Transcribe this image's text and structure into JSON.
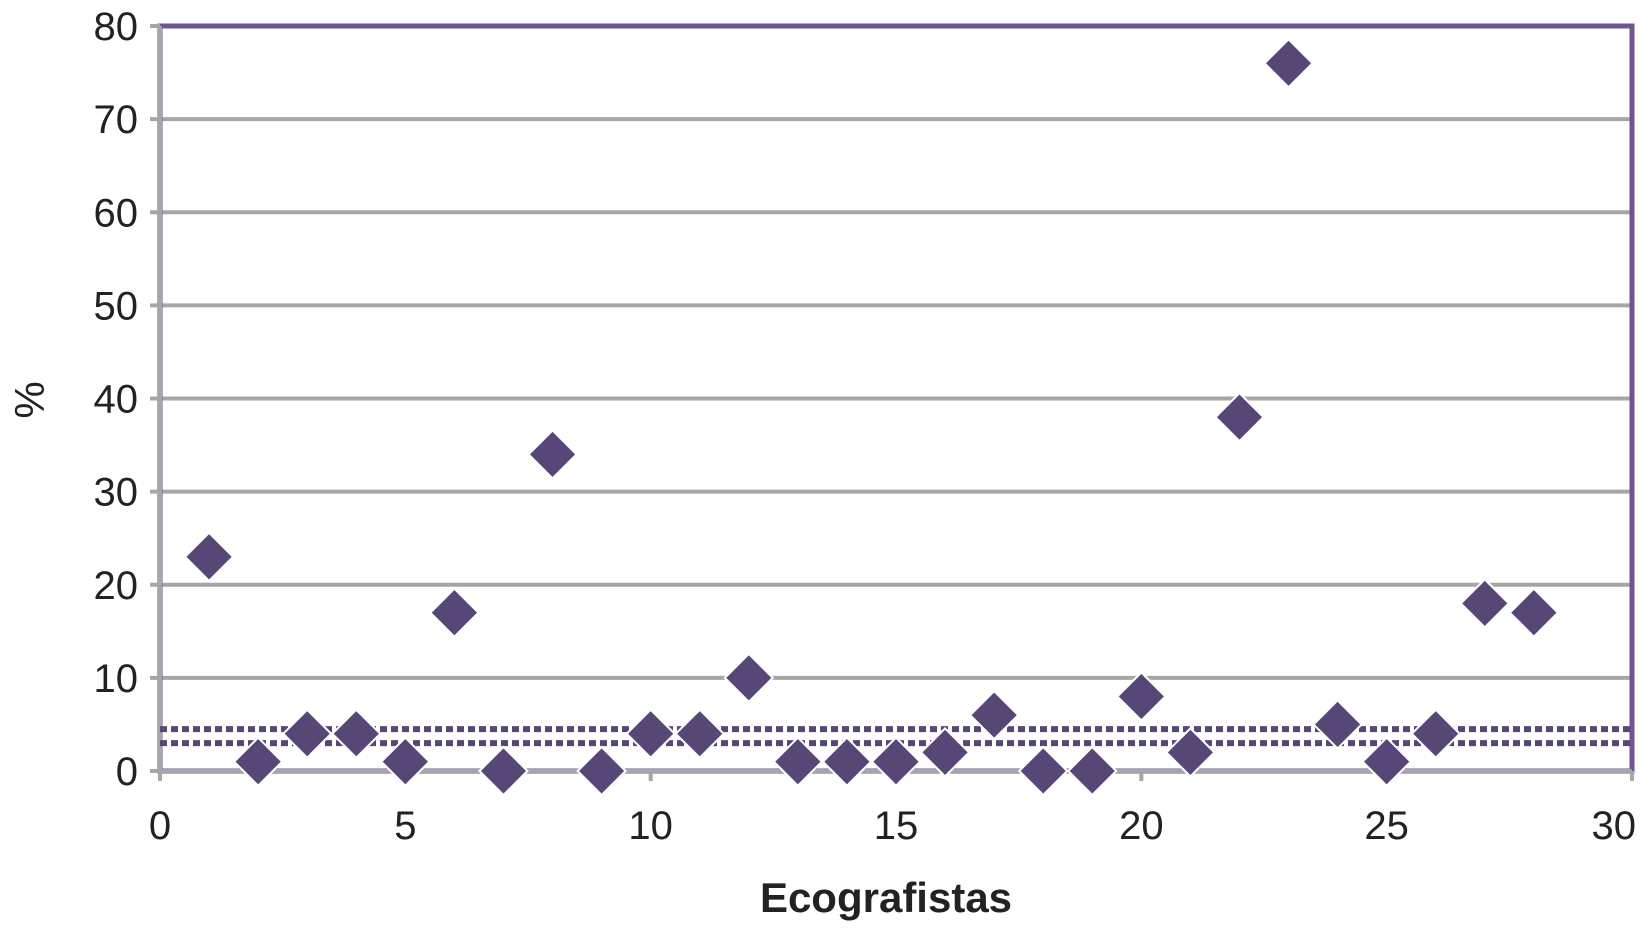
{
  "chart_data": {
    "type": "scatter",
    "title": "",
    "xlabel": "Ecografistas",
    "ylabel": "%",
    "xlim": [
      0,
      30
    ],
    "ylim": [
      0,
      80
    ],
    "xticks": [
      "0",
      "5",
      "10",
      "15",
      "20",
      "25",
      "30"
    ],
    "yticks": [
      "0",
      "10",
      "20",
      "30",
      "40",
      "50",
      "60",
      "70",
      "80"
    ],
    "grid": true,
    "legend": "none",
    "marker": "diamond",
    "colors": {
      "marker": "#574776",
      "frame": "#6f5490",
      "grid": "#a6a6a6",
      "reference_line": "#574776"
    },
    "reference_lines": [
      3,
      4.5
    ],
    "points": [
      {
        "x": 1,
        "y": 23
      },
      {
        "x": 2,
        "y": 1
      },
      {
        "x": 3,
        "y": 4
      },
      {
        "x": 4,
        "y": 4
      },
      {
        "x": 5,
        "y": 1
      },
      {
        "x": 6,
        "y": 17
      },
      {
        "x": 7,
        "y": 0
      },
      {
        "x": 8,
        "y": 34
      },
      {
        "x": 9,
        "y": 0
      },
      {
        "x": 10,
        "y": 4
      },
      {
        "x": 11,
        "y": 4
      },
      {
        "x": 12,
        "y": 10
      },
      {
        "x": 13,
        "y": 1
      },
      {
        "x": 14,
        "y": 1
      },
      {
        "x": 15,
        "y": 1
      },
      {
        "x": 16,
        "y": 2
      },
      {
        "x": 17,
        "y": 6
      },
      {
        "x": 18,
        "y": 0
      },
      {
        "x": 19,
        "y": 0
      },
      {
        "x": 20,
        "y": 8
      },
      {
        "x": 21,
        "y": 2
      },
      {
        "x": 22,
        "y": 38
      },
      {
        "x": 23,
        "y": 76
      },
      {
        "x": 24,
        "y": 5
      },
      {
        "x": 25,
        "y": 1
      },
      {
        "x": 26,
        "y": 4
      },
      {
        "x": 27,
        "y": 18
      },
      {
        "x": 28,
        "y": 17
      }
    ]
  }
}
